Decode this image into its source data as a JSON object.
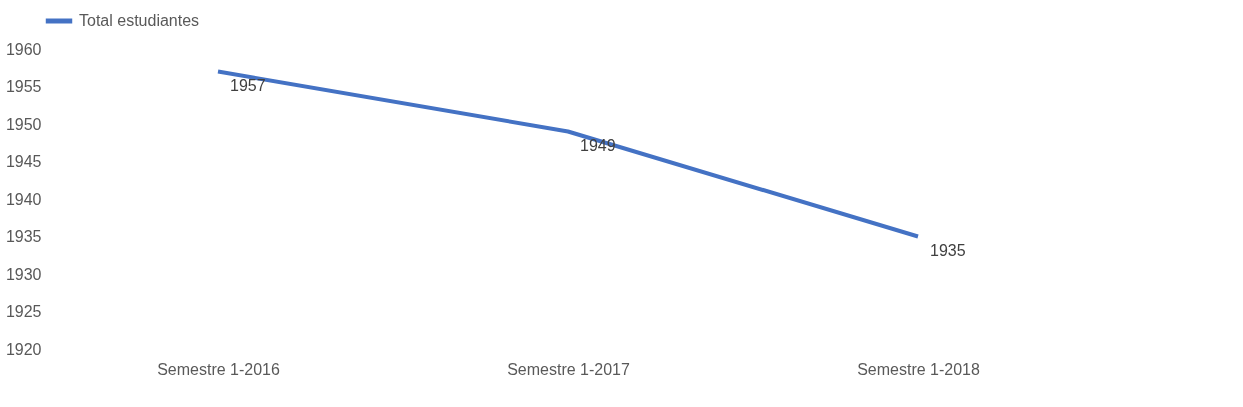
{
  "chart_data": {
    "type": "line",
    "categories": [
      "Semestre 1-2016",
      "Semestre 1-2017",
      "Semestre 1-2018"
    ],
    "series": [
      {
        "name": "Total estudiantes",
        "color": "#4472c4",
        "values": [
          1957,
          1949,
          1935
        ]
      }
    ],
    "ylim": [
      1920,
      1960
    ],
    "yticks": [
      1920,
      1925,
      1930,
      1935,
      1940,
      1945,
      1950,
      1955,
      1960
    ],
    "grid": false,
    "legend": "top",
    "data_labels": true
  }
}
